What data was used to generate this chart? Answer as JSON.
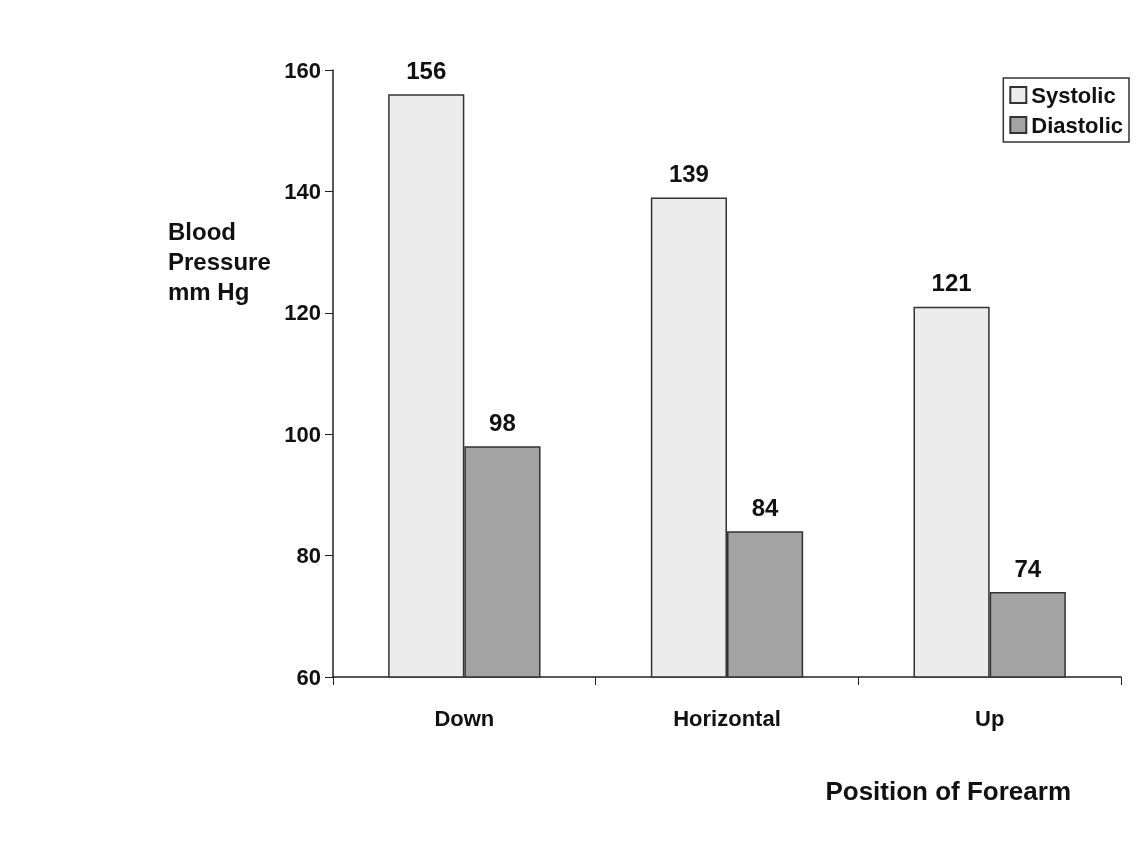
{
  "chart_data": {
    "type": "bar",
    "ylabel": "Blood Pressure mm Hg",
    "xlabel": "Position of Forearm",
    "categories": [
      "Down",
      "Horizontal",
      "Up"
    ],
    "series": [
      {
        "name": "Systolic",
        "color": "#ececec",
        "values": [
          156,
          139,
          121
        ]
      },
      {
        "name": "Diastolic",
        "color": "#a3a3a3",
        "values": [
          98,
          84,
          74
        ]
      }
    ],
    "ylim": [
      60,
      160
    ],
    "yticks": [
      60,
      80,
      100,
      120,
      140,
      160
    ],
    "grid": false,
    "legend": "top right",
    "data_labels": true
  }
}
